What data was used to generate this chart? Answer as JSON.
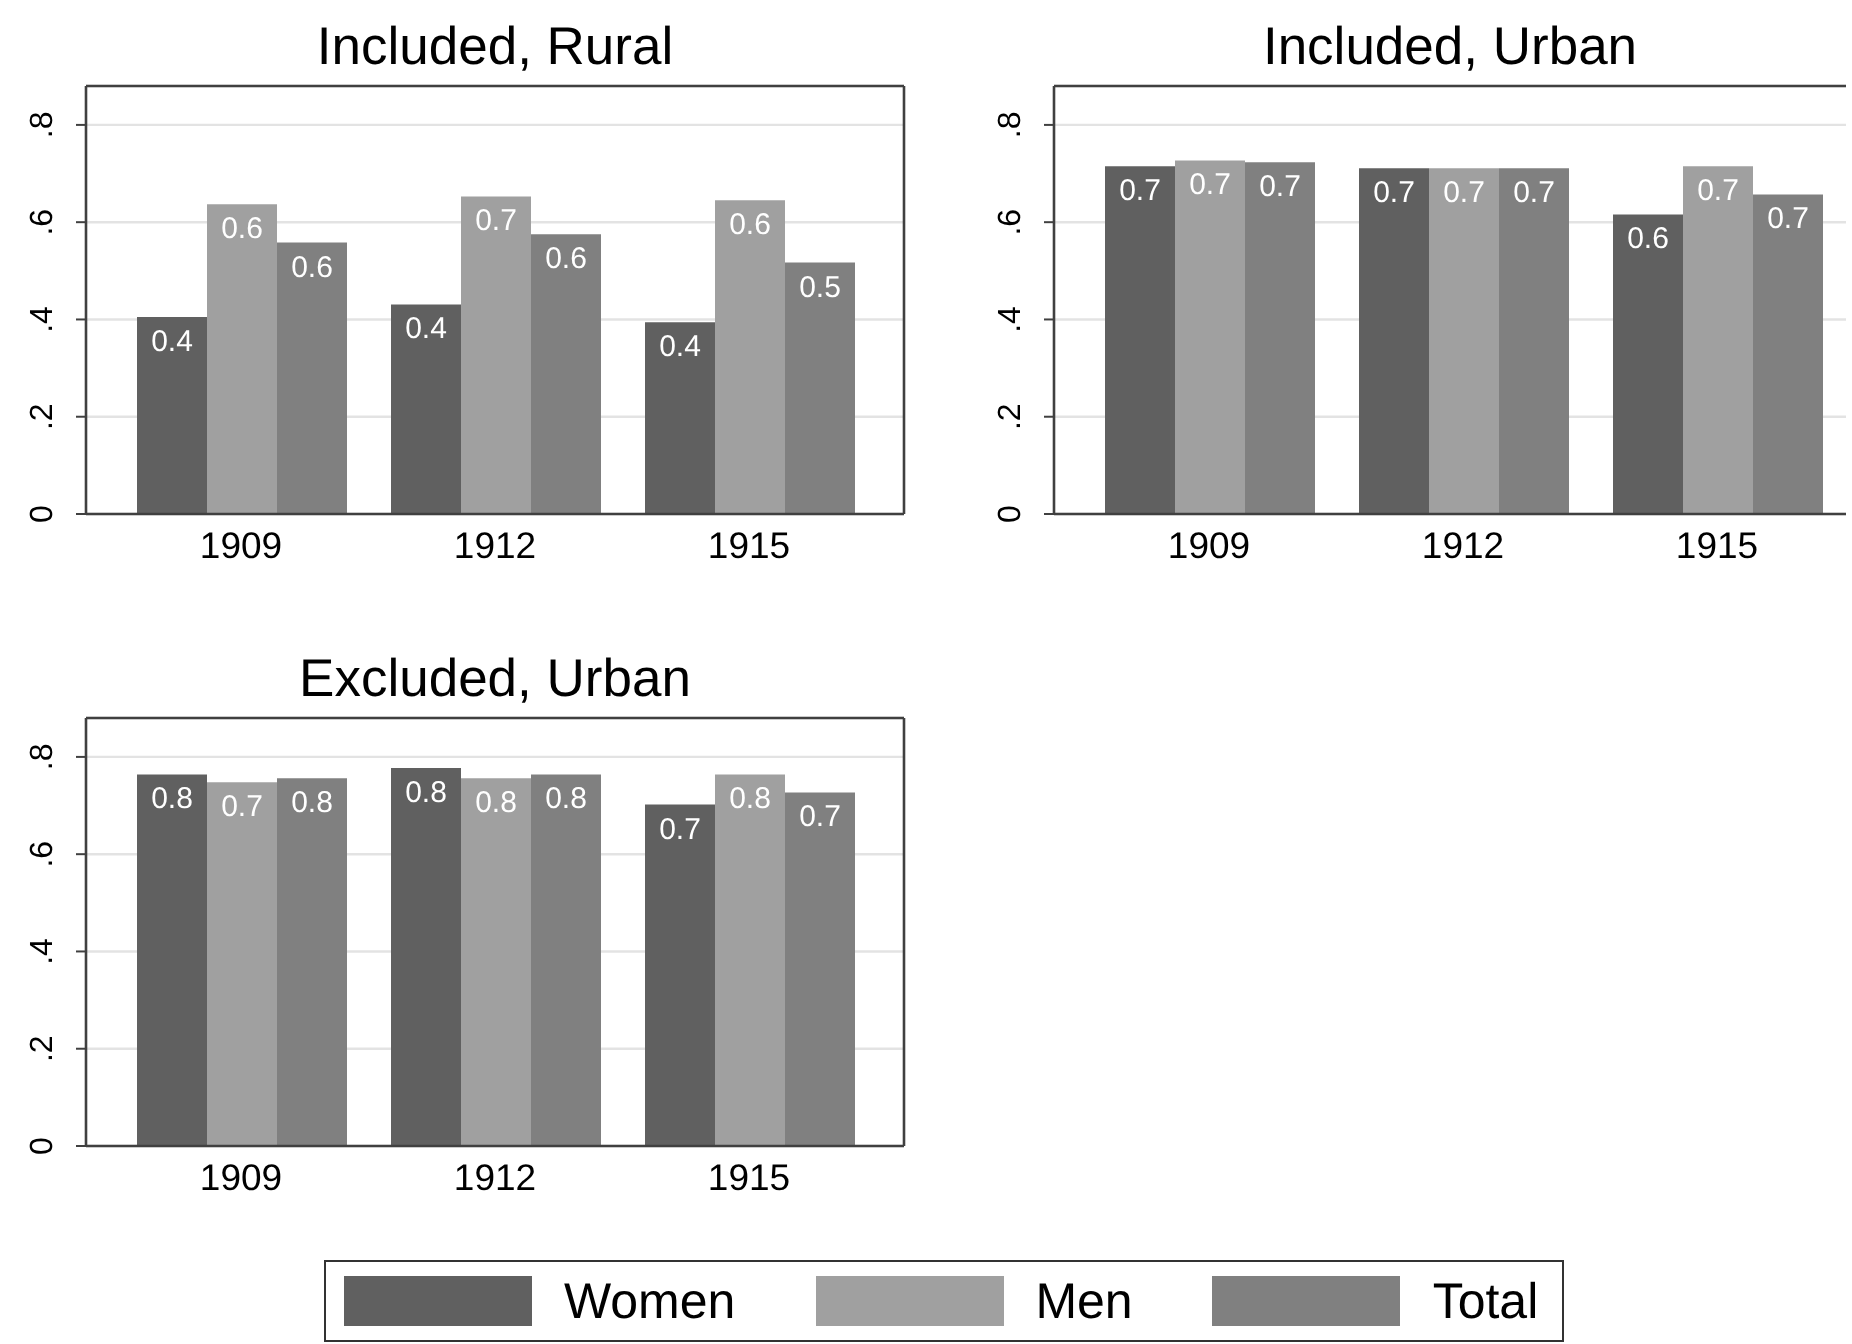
{
  "chart_data": [
    {
      "type": "bar",
      "title": "Included, Rural",
      "categories": [
        "1909",
        "1912",
        "1915"
      ],
      "series": [
        {
          "name": "Women",
          "color": "#606060",
          "values": [
            0.405,
            0.431,
            0.394
          ],
          "value_labels": [
            "0.4",
            "0.4",
            "0.4"
          ]
        },
        {
          "name": "Men",
          "color": "#a0a0a0",
          "values": [
            0.637,
            0.653,
            0.645
          ],
          "value_labels": [
            "0.6",
            "0.7",
            "0.6"
          ]
        },
        {
          "name": "Total",
          "color": "#808080",
          "values": [
            0.558,
            0.575,
            0.517
          ],
          "value_labels": [
            "0.6",
            "0.6",
            "0.5"
          ]
        }
      ],
      "ylim": [
        0,
        0.88
      ],
      "yticks": [
        {
          "value": 0,
          "label": "0"
        },
        {
          "value": 0.2,
          "label": ".2"
        },
        {
          "value": 0.4,
          "label": ".4"
        },
        {
          "value": 0.6,
          "label": ".6"
        },
        {
          "value": 0.8,
          "label": ".8"
        }
      ],
      "grid": "y",
      "legend": "bottom"
    },
    {
      "type": "bar",
      "title": "Included, Urban",
      "categories": [
        "1909",
        "1912",
        "1915"
      ],
      "series": [
        {
          "name": "Women",
          "color": "#606060",
          "values": [
            0.715,
            0.711,
            0.616
          ],
          "value_labels": [
            "0.7",
            "0.7",
            "0.6"
          ]
        },
        {
          "name": "Men",
          "color": "#a0a0a0",
          "values": [
            0.727,
            0.711,
            0.715
          ],
          "value_labels": [
            "0.7",
            "0.7",
            "0.7"
          ]
        },
        {
          "name": "Total",
          "color": "#808080",
          "values": [
            0.723,
            0.711,
            0.657
          ],
          "value_labels": [
            "0.7",
            "0.7",
            "0.7"
          ]
        }
      ],
      "ylim": [
        0,
        0.88
      ],
      "yticks": [
        {
          "value": 0,
          "label": "0"
        },
        {
          "value": 0.2,
          "label": ".2"
        },
        {
          "value": 0.4,
          "label": ".4"
        },
        {
          "value": 0.6,
          "label": ".6"
        },
        {
          "value": 0.8,
          "label": ".8"
        }
      ],
      "grid": "y",
      "legend": "bottom"
    },
    {
      "type": "bar",
      "title": "Excluded, Urban",
      "categories": [
        "1909",
        "1912",
        "1915"
      ],
      "series": [
        {
          "name": "Women",
          "color": "#606060",
          "values": [
            0.764,
            0.777,
            0.702
          ],
          "value_labels": [
            "0.8",
            "0.8",
            "0.7"
          ]
        },
        {
          "name": "Men",
          "color": "#a0a0a0",
          "values": [
            0.748,
            0.756,
            0.764
          ],
          "value_labels": [
            "0.7",
            "0.8",
            "0.8"
          ]
        },
        {
          "name": "Total",
          "color": "#808080",
          "values": [
            0.756,
            0.764,
            0.727
          ],
          "value_labels": [
            "0.8",
            "0.8",
            "0.7"
          ]
        }
      ],
      "ylim": [
        0,
        0.88
      ],
      "yticks": [
        {
          "value": 0,
          "label": "0"
        },
        {
          "value": 0.2,
          "label": ".2"
        },
        {
          "value": 0.4,
          "label": ".4"
        },
        {
          "value": 0.6,
          "label": ".6"
        },
        {
          "value": 0.8,
          "label": ".8"
        }
      ],
      "grid": "y",
      "legend": "bottom"
    }
  ]
}
